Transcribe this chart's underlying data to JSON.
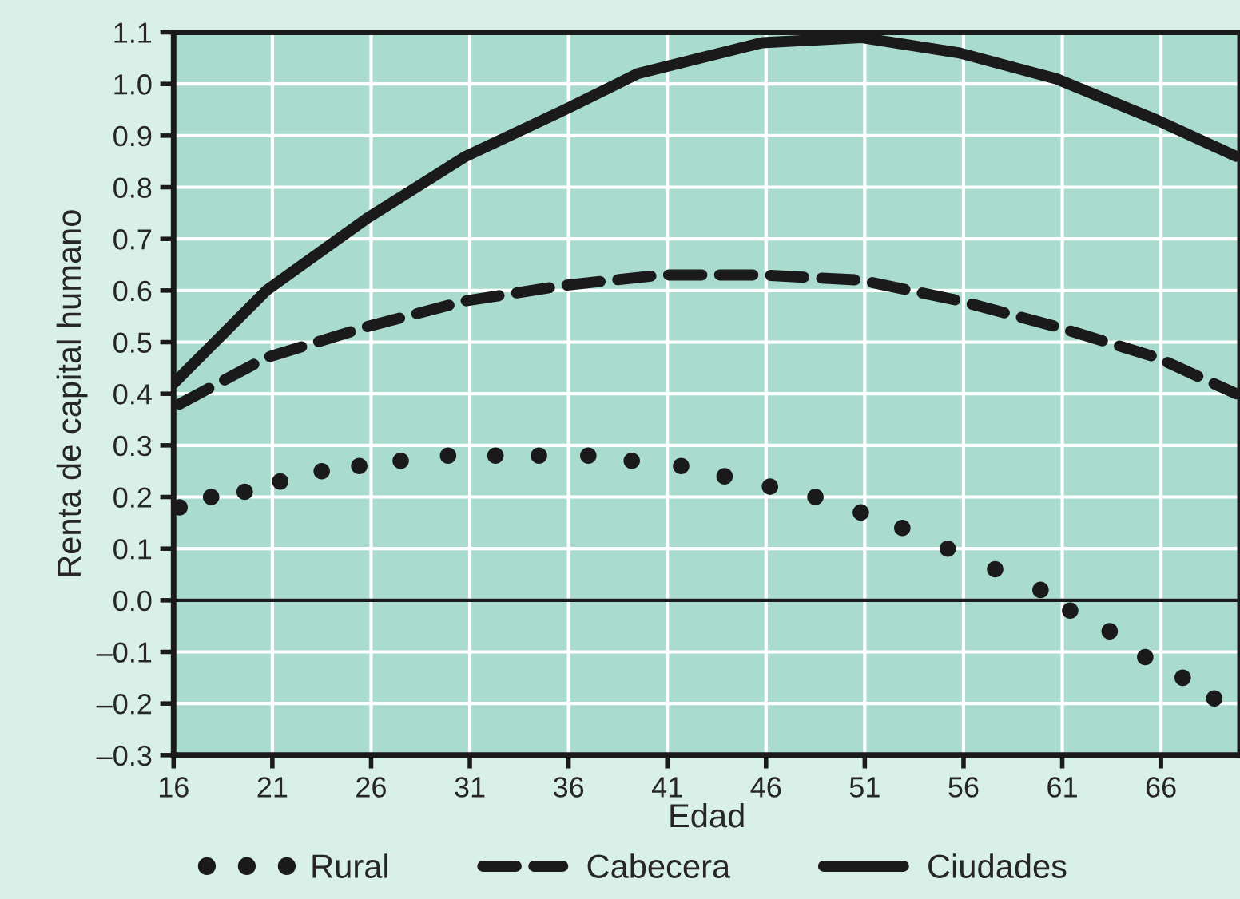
{
  "chart_data": {
    "type": "line",
    "xlabel": "Edad",
    "ylabel": "Renta de capital humano",
    "xlim": [
      16,
      70
    ],
    "xticks": [
      16,
      21,
      26,
      31,
      36,
      41,
      46,
      51,
      56,
      61,
      66
    ],
    "ylim": [
      -0.3,
      1.1
    ],
    "yticks": [
      {
        "value": -0.3,
        "label": "–0.3"
      },
      {
        "value": -0.2,
        "label": "–0.2"
      },
      {
        "value": -0.1,
        "label": "–0.1"
      },
      {
        "value": 0,
        "label": "0.0"
      },
      {
        "value": 0.1,
        "label": "0.1"
      },
      {
        "value": 0.2,
        "label": "0.2"
      },
      {
        "value": 0.3,
        "label": "0.3"
      },
      {
        "value": 0.4,
        "label": "0.4"
      },
      {
        "value": 0.5,
        "label": "0.5"
      },
      {
        "value": 0.6,
        "label": "0.6"
      },
      {
        "value": 0.7,
        "label": "0.7"
      },
      {
        "value": 0.8,
        "label": "0.8"
      },
      {
        "value": 0.9,
        "label": "0.9"
      },
      {
        "value": 1.0,
        "label": "1.0"
      },
      {
        "value": 1.1,
        "label": "1.1"
      }
    ],
    "grid": true,
    "legend": "bottom",
    "ref_lines": [
      {
        "axis": "y",
        "value": 0,
        "color": "#1a1a1a"
      }
    ],
    "series": [
      {
        "name": "Rural",
        "type": "scatter",
        "marker": "circle",
        "color": "#1a1a1a",
        "x": [
          16.3,
          17.9,
          19.6,
          21.4,
          23.5,
          25.4,
          27.5,
          29.9,
          32.3,
          34.5,
          37.0,
          39.2,
          41.7,
          43.9,
          46.2,
          48.5,
          50.8,
          52.9,
          55.2,
          57.6,
          59.9,
          61.4,
          63.4,
          65.2,
          67.1,
          68.7
        ],
        "values": [
          0.18,
          0.2,
          0.21,
          0.23,
          0.25,
          0.26,
          0.27,
          0.28,
          0.28,
          0.28,
          0.28,
          0.27,
          0.26,
          0.24,
          0.22,
          0.2,
          0.17,
          0.14,
          0.1,
          0.06,
          0.02,
          -0.02,
          -0.06,
          -0.11,
          -0.15,
          -0.19
        ]
      },
      {
        "name": "Cabecera",
        "line_style": "dashed",
        "color": "#1a1a1a",
        "x": [
          16.3,
          20.7,
          25.8,
          30.8,
          35.8,
          40.7,
          45.8,
          50.8,
          55.8,
          60.7,
          65.8,
          69.8
        ],
        "values": [
          0.38,
          0.47,
          0.53,
          0.58,
          0.61,
          0.63,
          0.63,
          0.62,
          0.58,
          0.53,
          0.47,
          0.4
        ]
      },
      {
        "name": "Ciudades",
        "line_style": "solid",
        "color": "#1a1a1a",
        "x": [
          16.0,
          20.7,
          25.8,
          30.8,
          35.8,
          39.5,
          45.8,
          50.8,
          55.8,
          60.7,
          65.8,
          69.8
        ],
        "values": [
          0.42,
          0.6,
          0.74,
          0.86,
          0.95,
          1.02,
          1.08,
          1.09,
          1.06,
          1.01,
          0.93,
          0.86
        ]
      }
    ]
  }
}
